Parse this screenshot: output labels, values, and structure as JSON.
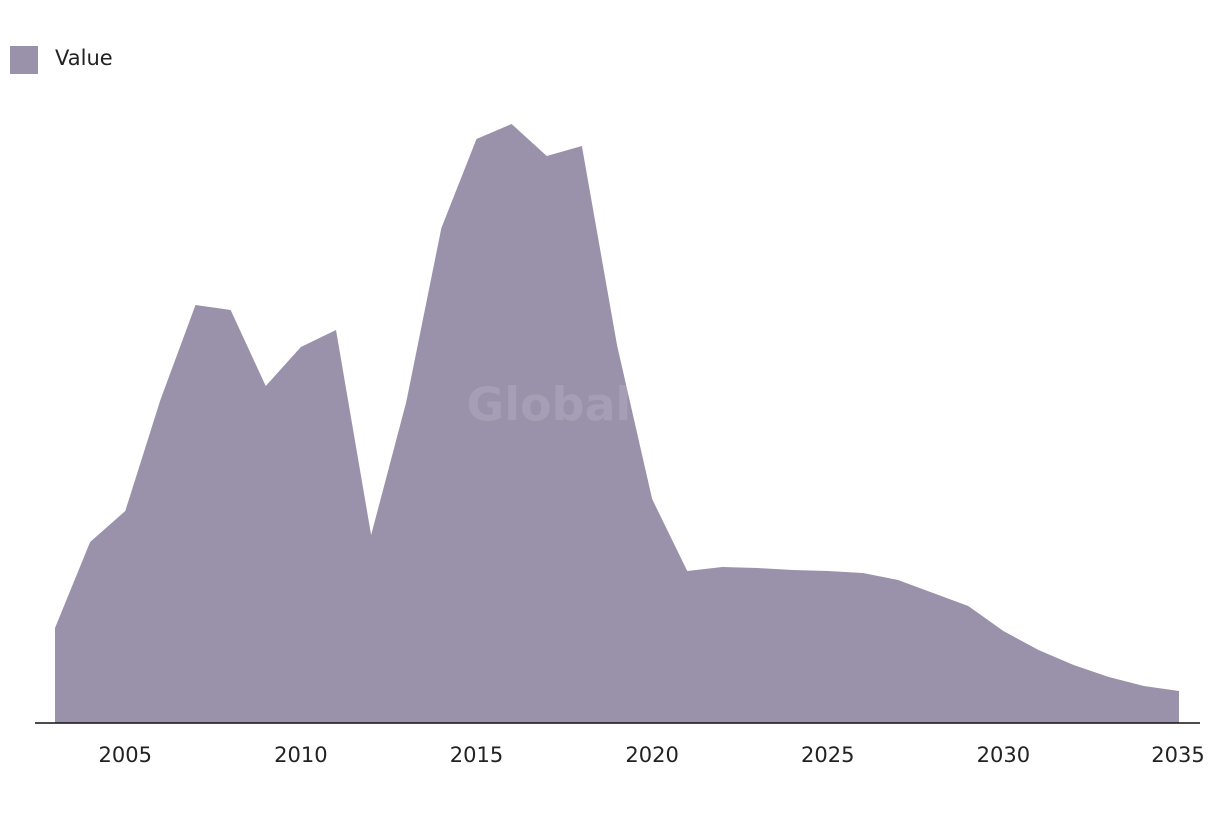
{
  "chart_data": {
    "type": "area",
    "watermark": "GlobalData",
    "x": [
      2003,
      2004,
      2005,
      2006,
      2007,
      2008,
      2009,
      2010,
      2011,
      2012,
      2013,
      2014,
      2015,
      2016,
      2017,
      2018,
      2019,
      2020,
      2021,
      2022,
      2023,
      2024,
      2025,
      2026,
      2027,
      2028,
      2029,
      2030,
      2031,
      2032,
      2033,
      2034,
      2035
    ],
    "series": [
      {
        "name": "Value",
        "color": "#9a91aa",
        "values": [
          95,
          181,
          212,
          323,
          418,
          413,
          337,
          376,
          393,
          188,
          321,
          495,
          584,
          599,
          567,
          577,
          378,
          224,
          152,
          156,
          155,
          153,
          152,
          150,
          143,
          130,
          117,
          92,
          73,
          58,
          46,
          37,
          32
        ]
      }
    ],
    "xlim": [
      2003,
      2035
    ],
    "xticks": [
      2005,
      2010,
      2015,
      2020,
      2025,
      2030,
      2035
    ],
    "ylim": [
      0,
      600
    ],
    "legend": "top-left"
  }
}
